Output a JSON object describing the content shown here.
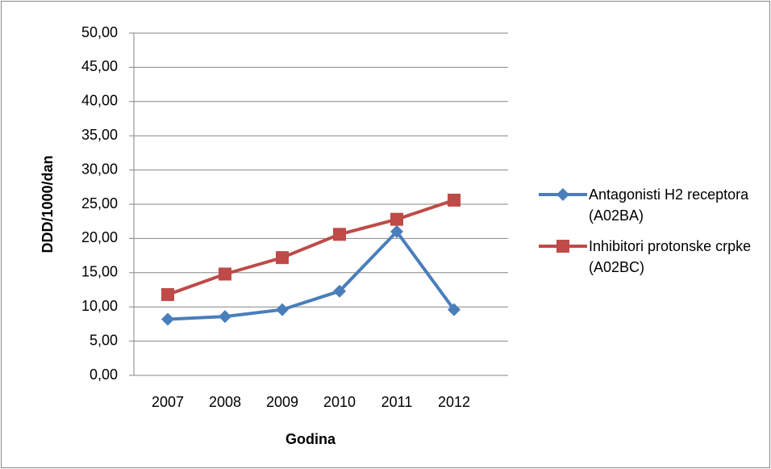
{
  "chart_data": {
    "type": "line",
    "categories": [
      "2007",
      "2008",
      "2009",
      "2010",
      "2011",
      "2012"
    ],
    "series": [
      {
        "name": "Antagonisti H2 receptora (A02BA)",
        "color": "#4a7ebb",
        "marker": "diamond",
        "values": [
          8.2,
          8.6,
          9.6,
          12.3,
          21.0,
          9.6
        ]
      },
      {
        "name": "Inhibitori protonske crpke (A02BC)",
        "color": "#be4b48",
        "marker": "square",
        "values": [
          11.8,
          14.8,
          17.2,
          20.6,
          22.8,
          25.6
        ]
      }
    ],
    "ylim": [
      0,
      50
    ],
    "yticks": [
      {
        "value": 0,
        "label": "0,00"
      },
      {
        "value": 5,
        "label": "5,00"
      },
      {
        "value": 10,
        "label": "10,00"
      },
      {
        "value": 15,
        "label": "15,00"
      },
      {
        "value": 20,
        "label": "20,00"
      },
      {
        "value": 25,
        "label": "25,00"
      },
      {
        "value": 30,
        "label": "30,00"
      },
      {
        "value": 35,
        "label": "35,00"
      },
      {
        "value": 40,
        "label": "40,00"
      },
      {
        "value": 45,
        "label": "45,00"
      },
      {
        "value": 50,
        "label": "50,00"
      }
    ],
    "xlabel": "Godina",
    "ylabel": "DDD/1000/dan",
    "grid": true,
    "legend": "right"
  }
}
